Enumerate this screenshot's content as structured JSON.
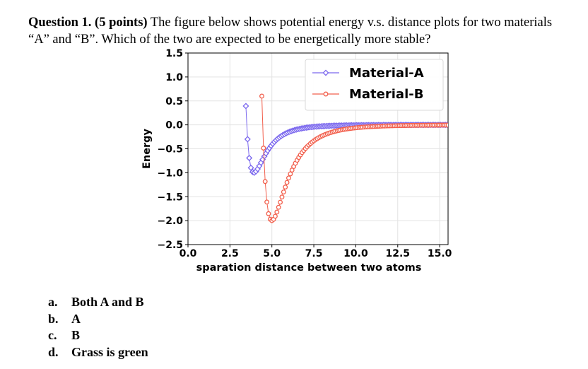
{
  "question": {
    "heading": "Question 1. (5 points)",
    "text": " The figure below shows potential energy v.s. distance plots for two materials “A” and “B”.  Which of the two are expected to be energetically more stable?"
  },
  "chart_data": {
    "type": "line",
    "title": "",
    "xlabel": "sparation distance between two atoms",
    "ylabel": "Energy",
    "xlim": [
      0,
      15.5
    ],
    "ylim": [
      -2.5,
      1.5
    ],
    "xticks": [
      "0.0",
      "2.5",
      "5.0",
      "7.5",
      "10.0",
      "12.5",
      "15.0"
    ],
    "yticks": [
      "1.5",
      "1.0",
      "0.5",
      "0.0",
      "−0.5",
      "−1.0",
      "−1.5",
      "−2.0",
      "−2.5"
    ],
    "grid": true,
    "legend": "top-right",
    "series": [
      {
        "name": "Material-A",
        "model": "lennard-jones",
        "epsilon": 1.0,
        "sigma": 3.5,
        "color": "#7b68ee",
        "marker": "diamond",
        "x_range": [
          3.45,
          15.5
        ],
        "step": 0.1
      },
      {
        "name": "Material-B",
        "model": "lennard-jones",
        "epsilon": 2.0,
        "sigma": 4.45,
        "color": "#f25f4c",
        "marker": "circle",
        "x_range": [
          4.4,
          15.5
        ],
        "step": 0.1
      }
    ]
  },
  "options": [
    {
      "letter": "a.",
      "text": "Both A and B"
    },
    {
      "letter": "b.",
      "text": "A"
    },
    {
      "letter": "c.",
      "text": "B"
    },
    {
      "letter": "d.",
      "text": "Grass is green"
    }
  ]
}
